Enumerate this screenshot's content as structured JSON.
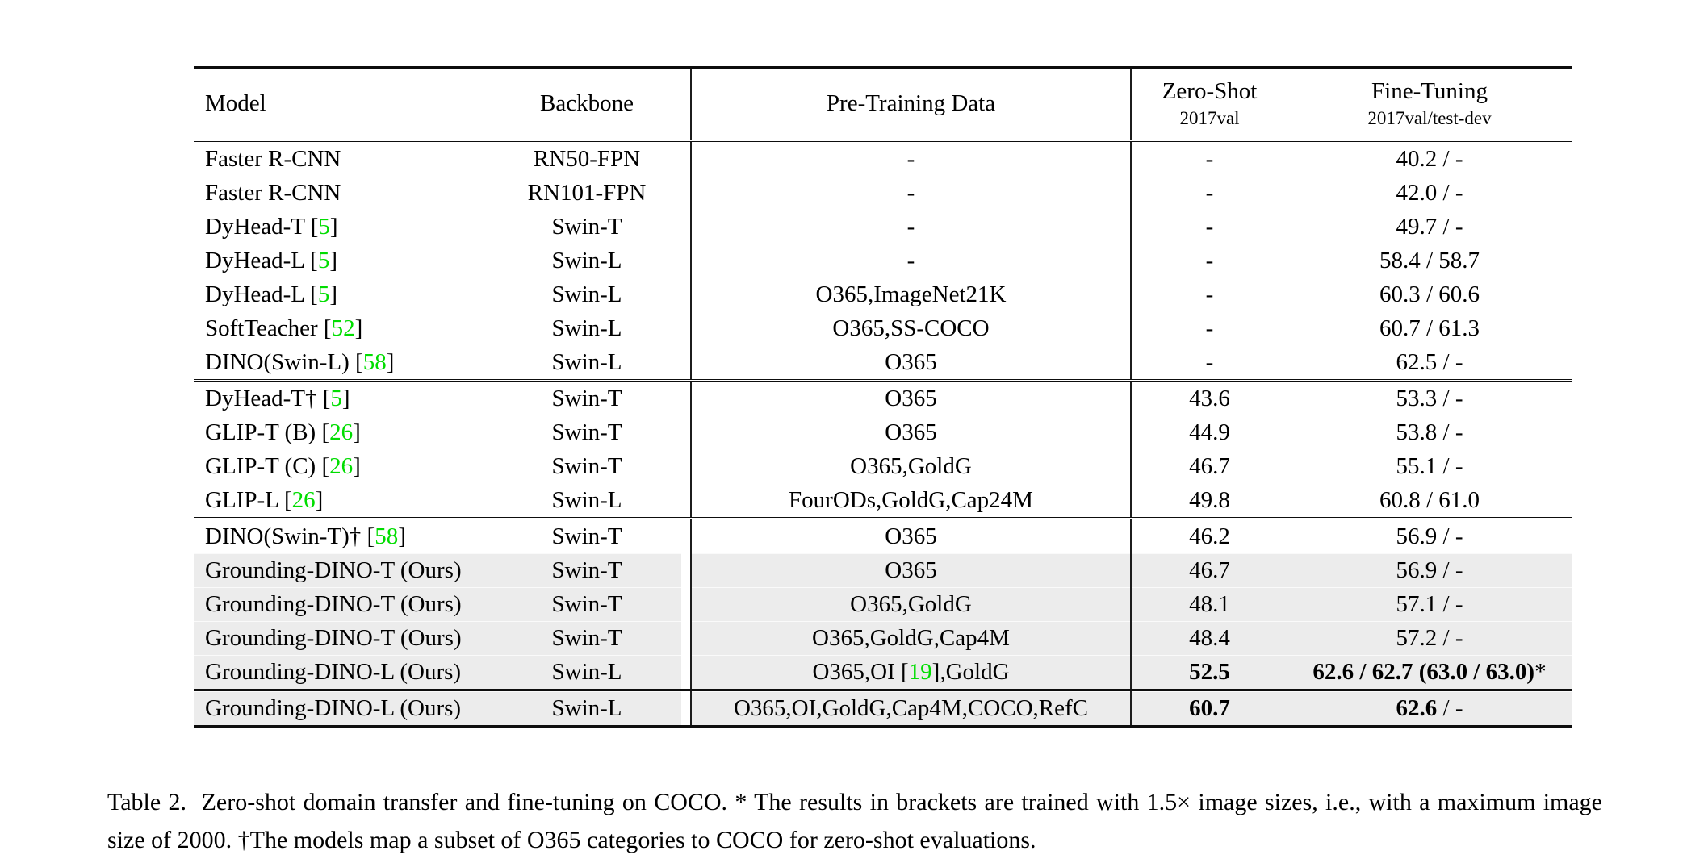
{
  "colors": {
    "shaded_row": "#ececec",
    "citation_green": "#00dd00",
    "rule": "#0d0d0d"
  },
  "table": {
    "header": {
      "model": "Model",
      "backbone": "Backbone",
      "pretrain": "Pre-Training Data",
      "zeroshot_line1": "Zero-Shot",
      "zeroshot_line2": "2017val",
      "finetune_line1": "Fine-Tuning",
      "finetune_line2": "2017val/test-dev"
    },
    "groups": [
      {
        "rows": [
          {
            "shaded": false,
            "cells": [
              [
                {
                  "t": "Faster R-CNN"
                }
              ],
              [
                {
                  "t": "RN50-FPN"
                }
              ],
              [
                {
                  "t": "-"
                }
              ],
              [
                {
                  "t": "-"
                }
              ],
              [
                {
                  "t": "40.2 / -"
                }
              ]
            ]
          },
          {
            "shaded": false,
            "cells": [
              [
                {
                  "t": "Faster R-CNN"
                }
              ],
              [
                {
                  "t": "RN101-FPN"
                }
              ],
              [
                {
                  "t": "-"
                }
              ],
              [
                {
                  "t": "-"
                }
              ],
              [
                {
                  "t": "42.0 / -"
                }
              ]
            ]
          },
          {
            "shaded": false,
            "cells": [
              [
                {
                  "t": "DyHead-T ["
                },
                {
                  "t": "5",
                  "c": true
                },
                {
                  "t": "]"
                }
              ],
              [
                {
                  "t": "Swin-T"
                }
              ],
              [
                {
                  "t": "-"
                }
              ],
              [
                {
                  "t": "-"
                }
              ],
              [
                {
                  "t": "49.7 / -"
                }
              ]
            ]
          },
          {
            "shaded": false,
            "cells": [
              [
                {
                  "t": "DyHead-L ["
                },
                {
                  "t": "5",
                  "c": true
                },
                {
                  "t": "]"
                }
              ],
              [
                {
                  "t": "Swin-L"
                }
              ],
              [
                {
                  "t": "-"
                }
              ],
              [
                {
                  "t": "-"
                }
              ],
              [
                {
                  "t": "58.4 / 58.7"
                }
              ]
            ]
          },
          {
            "shaded": false,
            "cells": [
              [
                {
                  "t": "DyHead-L ["
                },
                {
                  "t": "5",
                  "c": true
                },
                {
                  "t": "]"
                }
              ],
              [
                {
                  "t": "Swin-L"
                }
              ],
              [
                {
                  "t": "O365,ImageNet21K"
                }
              ],
              [
                {
                  "t": "-"
                }
              ],
              [
                {
                  "t": "60.3 / 60.6"
                }
              ]
            ]
          },
          {
            "shaded": false,
            "cells": [
              [
                {
                  "t": "SoftTeacher ["
                },
                {
                  "t": "52",
                  "c": true
                },
                {
                  "t": "]"
                }
              ],
              [
                {
                  "t": "Swin-L"
                }
              ],
              [
                {
                  "t": "O365,SS-COCO"
                }
              ],
              [
                {
                  "t": "-"
                }
              ],
              [
                {
                  "t": "60.7 / 61.3"
                }
              ]
            ]
          },
          {
            "shaded": false,
            "cells": [
              [
                {
                  "t": "DINO(Swin-L) ["
                },
                {
                  "t": "58",
                  "c": true
                },
                {
                  "t": "]"
                }
              ],
              [
                {
                  "t": "Swin-L"
                }
              ],
              [
                {
                  "t": "O365"
                }
              ],
              [
                {
                  "t": "-"
                }
              ],
              [
                {
                  "t": "62.5 / -"
                }
              ]
            ]
          }
        ]
      },
      {
        "rows": [
          {
            "shaded": false,
            "cells": [
              [
                {
                  "t": "DyHead-T† ["
                },
                {
                  "t": "5",
                  "c": true
                },
                {
                  "t": "]"
                }
              ],
              [
                {
                  "t": "Swin-T"
                }
              ],
              [
                {
                  "t": "O365"
                }
              ],
              [
                {
                  "t": "43.6"
                }
              ],
              [
                {
                  "t": "53.3 / -"
                }
              ]
            ]
          },
          {
            "shaded": false,
            "cells": [
              [
                {
                  "t": "GLIP-T (B) ["
                },
                {
                  "t": "26",
                  "c": true
                },
                {
                  "t": "]"
                }
              ],
              [
                {
                  "t": "Swin-T"
                }
              ],
              [
                {
                  "t": "O365"
                }
              ],
              [
                {
                  "t": "44.9"
                }
              ],
              [
                {
                  "t": "53.8 / -"
                }
              ]
            ]
          },
          {
            "shaded": false,
            "cells": [
              [
                {
                  "t": "GLIP-T (C) ["
                },
                {
                  "t": "26",
                  "c": true
                },
                {
                  "t": "]"
                }
              ],
              [
                {
                  "t": "Swin-T"
                }
              ],
              [
                {
                  "t": "O365,GoldG"
                }
              ],
              [
                {
                  "t": "46.7"
                }
              ],
              [
                {
                  "t": "55.1 / -"
                }
              ]
            ]
          },
          {
            "shaded": false,
            "cells": [
              [
                {
                  "t": "GLIP-L ["
                },
                {
                  "t": "26",
                  "c": true
                },
                {
                  "t": "]"
                }
              ],
              [
                {
                  "t": "Swin-L"
                }
              ],
              [
                {
                  "t": "FourODs,GoldG,Cap24M"
                }
              ],
              [
                {
                  "t": "49.8"
                }
              ],
              [
                {
                  "t": "60.8 / 61.0"
                }
              ]
            ]
          }
        ]
      },
      {
        "rows": [
          {
            "shaded": false,
            "cells": [
              [
                {
                  "t": "DINO(Swin-T)† ["
                },
                {
                  "t": "58",
                  "c": true
                },
                {
                  "t": "]"
                }
              ],
              [
                {
                  "t": "Swin-T"
                }
              ],
              [
                {
                  "t": "O365"
                }
              ],
              [
                {
                  "t": "46.2"
                }
              ],
              [
                {
                  "t": "56.9 / -"
                }
              ]
            ]
          },
          {
            "shaded": true,
            "cells": [
              [
                {
                  "t": "Grounding-DINO-T (Ours)"
                }
              ],
              [
                {
                  "t": "Swin-T"
                }
              ],
              [
                {
                  "t": "O365"
                }
              ],
              [
                {
                  "t": "46.7"
                }
              ],
              [
                {
                  "t": "56.9 / -"
                }
              ]
            ]
          },
          {
            "shaded": true,
            "cells": [
              [
                {
                  "t": "Grounding-DINO-T (Ours)"
                }
              ],
              [
                {
                  "t": "Swin-T"
                }
              ],
              [
                {
                  "t": "O365,GoldG"
                }
              ],
              [
                {
                  "t": "48.1"
                }
              ],
              [
                {
                  "t": "57.1 / -"
                }
              ]
            ]
          },
          {
            "shaded": true,
            "cells": [
              [
                {
                  "t": "Grounding-DINO-T (Ours)"
                }
              ],
              [
                {
                  "t": "Swin-T"
                }
              ],
              [
                {
                  "t": "O365,GoldG,Cap4M"
                }
              ],
              [
                {
                  "t": "48.4"
                }
              ],
              [
                {
                  "t": "57.2 / -"
                }
              ]
            ]
          },
          {
            "shaded": true,
            "cells": [
              [
                {
                  "t": "Grounding-DINO-L (Ours)"
                }
              ],
              [
                {
                  "t": "Swin-L"
                }
              ],
              [
                {
                  "t": "O365,OI ["
                },
                {
                  "t": "19",
                  "c": true
                },
                {
                  "t": "],GoldG"
                }
              ],
              [
                {
                  "t": "52.5",
                  "b": true
                }
              ],
              [
                {
                  "t": "62.6 / 62.7 (63.0 / 63.0)",
                  "b": true
                },
                {
                  "t": "*"
                }
              ]
            ]
          }
        ]
      },
      {
        "rows": [
          {
            "shaded": true,
            "cells": [
              [
                {
                  "t": "Grounding-DINO-L (Ours)"
                }
              ],
              [
                {
                  "t": "Swin-L"
                }
              ],
              [
                {
                  "t": "O365,OI,GoldG,Cap4M,COCO,RefC"
                }
              ],
              [
                {
                  "t": "60.7",
                  "b": true
                }
              ],
              [
                {
                  "t": "62.6",
                  "b": true
                },
                {
                  "t": " / -"
                }
              ]
            ]
          }
        ]
      }
    ]
  },
  "caption": {
    "text": "Table 2.  Zero-shot domain transfer and fine-tuning on COCO. * The results in brackets are trained with 1.5× image sizes, i.e., with a maximum image size of 2000. †The models map a subset of O365 categories to COCO for zero-shot evaluations."
  }
}
